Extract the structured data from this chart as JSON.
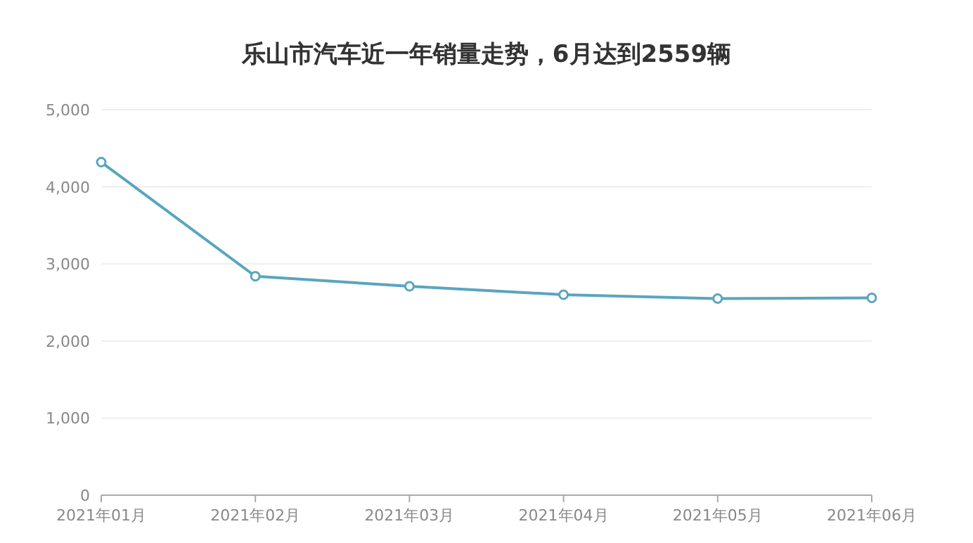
{
  "chart_data": {
    "type": "line",
    "title": "乐山市汽车近一年销量走势，6月达到2559辆",
    "categories": [
      "2021年01月",
      "2021年02月",
      "2021年03月",
      "2021年04月",
      "2021年05月",
      "2021年06月"
    ],
    "series": [
      {
        "color": "#5aa5bf",
        "values": [
          4320,
          2840,
          2710,
          2600,
          2550,
          2559
        ]
      }
    ],
    "ylim": [
      0,
      5000
    ],
    "yticks": [
      {
        "value": 0,
        "label": "0"
      },
      {
        "value": 1000,
        "label": "1,000"
      },
      {
        "value": 2000,
        "label": "2,000"
      },
      {
        "value": 3000,
        "label": "3,000"
      },
      {
        "value": 4000,
        "label": "4,000"
      },
      {
        "value": 5000,
        "label": "5,000"
      }
    ],
    "grid": "y",
    "marker": "circle"
  }
}
